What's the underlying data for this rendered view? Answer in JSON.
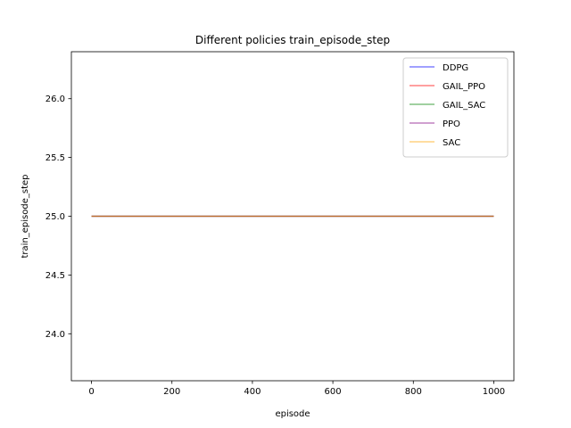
{
  "chart_data": {
    "type": "line",
    "title": "Different policies train_episode_step",
    "xlabel": "episode",
    "ylabel": "train_episode_step",
    "xlim": [
      -50,
      1050
    ],
    "ylim": [
      23.6,
      26.4
    ],
    "xticks": [
      0,
      200,
      400,
      600,
      800,
      1000
    ],
    "yticks": [
      24.0,
      24.5,
      25.0,
      25.5,
      26.0
    ],
    "xtick_labels": [
      "0",
      "200",
      "400",
      "600",
      "800",
      "1000"
    ],
    "ytick_labels": [
      "24.0",
      "24.5",
      "25.0",
      "25.5",
      "26.0"
    ],
    "grid": false,
    "legend_position": "top-right",
    "series": [
      {
        "name": "DDPG",
        "color": "#0000ff",
        "x": [
          0,
          1000
        ],
        "y": [
          25.0,
          25.0
        ]
      },
      {
        "name": "GAIL_PPO",
        "color": "#ff0000",
        "x": [
          0,
          1000
        ],
        "y": [
          25.0,
          25.0
        ]
      },
      {
        "name": "GAIL_SAC",
        "color": "#008000",
        "x": [
          0,
          1000
        ],
        "y": [
          25.0,
          25.0
        ]
      },
      {
        "name": "PPO",
        "color": "#800080",
        "x": [
          0,
          1000
        ],
        "y": [
          25.0,
          25.0
        ]
      },
      {
        "name": "SAC",
        "color": "#ffa500",
        "x": [
          0,
          1000
        ],
        "y": [
          25.0,
          25.0
        ]
      }
    ]
  }
}
